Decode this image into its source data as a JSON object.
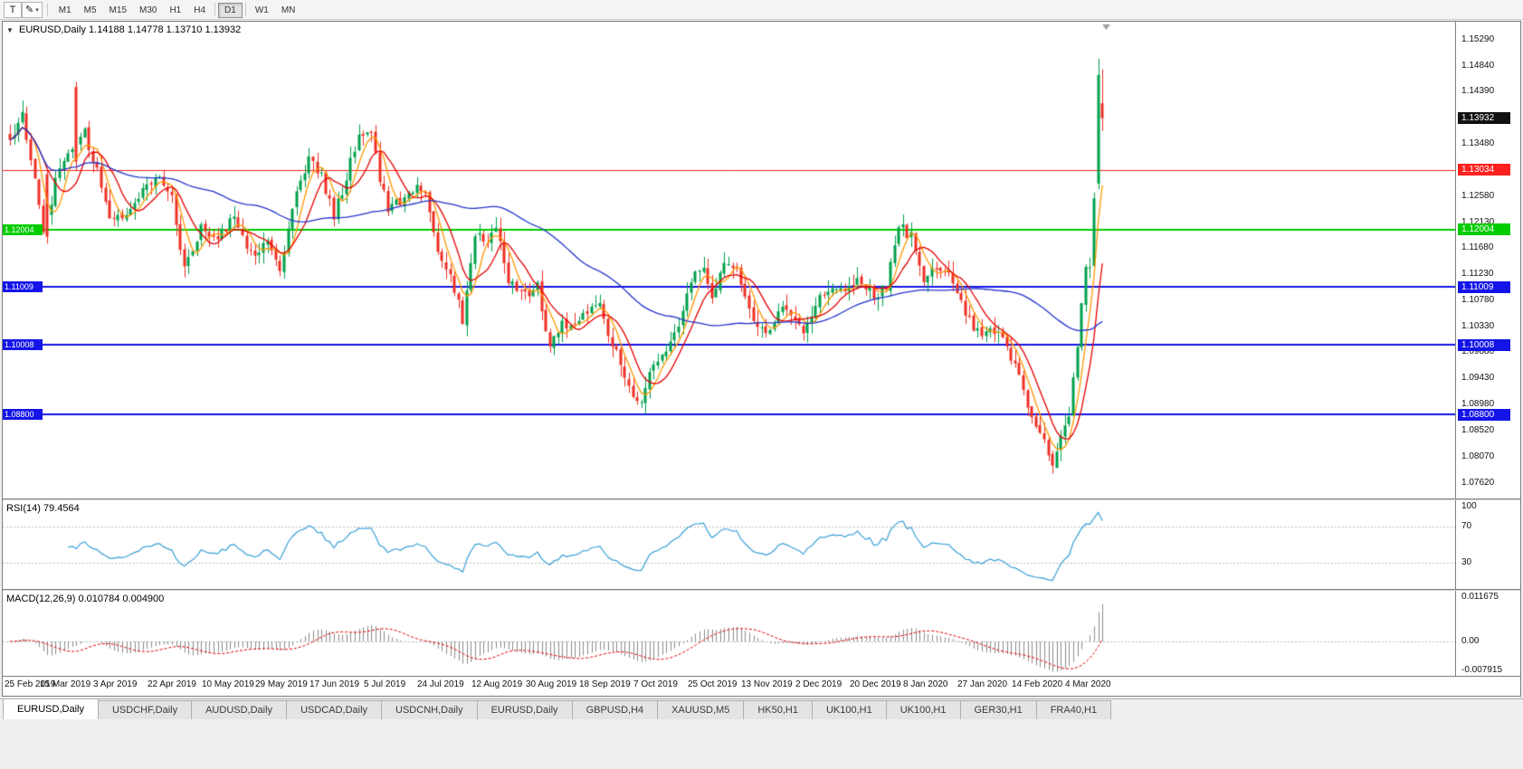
{
  "toolbar": {
    "tool_buttons": [
      {
        "id": "text-tool",
        "glyph": "T",
        "has_dropdown": false
      },
      {
        "id": "drawing-tool",
        "glyph": "✎",
        "has_dropdown": true
      }
    ],
    "timeframes": [
      "M1",
      "M5",
      "M15",
      "M30",
      "H1",
      "H4",
      "D1",
      "W1",
      "MN"
    ],
    "active_timeframe": "D1",
    "separators_after": [
      "H4",
      "D1"
    ]
  },
  "chart_data": {
    "type": "candlestick",
    "title": "EURUSD,Daily",
    "symbol": "EURUSD",
    "period": "Daily",
    "ohlc_text": "1.14188 1.14778 1.13710 1.13932",
    "open": "1.14188",
    "high": "1.14778",
    "low": "1.13710",
    "close": "1.13932",
    "bars": 264,
    "bar_start_x": 8,
    "bar_spacing": 4.59,
    "price_min": 1.0735,
    "price_max": 1.156,
    "bull_color": "#00A14B",
    "bear_color": "#EE3024",
    "y_ticks": [
      "1.15290",
      "1.14840",
      "1.14390",
      "1.13940",
      "1.13480",
      "1.13030",
      "1.12580",
      "1.12130",
      "1.11680",
      "1.11230",
      "1.10780",
      "1.10330",
      "1.09880",
      "1.09430",
      "1.08980",
      "1.08520",
      "1.08070",
      "1.07620"
    ],
    "x_labels": [
      "25 Feb 2019",
      "15 Mar 2019",
      "3 Apr 2019",
      "22 Apr 2019",
      "10 May 2019",
      "29 May 2019",
      "17 Jun 2019",
      "5 Jul 2019",
      "24 Jul 2019",
      "12 Aug 2019",
      "30 Aug 2019",
      "18 Sep 2019",
      "7 Oct 2019",
      "25 Oct 2019",
      "13 Nov 2019",
      "2 Dec 2019",
      "20 Dec 2019",
      "8 Jan 2020",
      "27 Jan 2020",
      "14 Feb 2020",
      "4 Mar 2020"
    ],
    "x_label_step": 13,
    "current_price_badge": {
      "label": "1.13932",
      "bg": "#111111"
    },
    "horizontal_lines": [
      {
        "value": 1.13034,
        "label": "1.13034",
        "color": "#FF2020",
        "width": 1,
        "left_badge": false
      },
      {
        "value": 1.12004,
        "label": "1.12004",
        "color": "#00CC00",
        "width": 2,
        "left_badge": true
      },
      {
        "value": 1.11009,
        "label": "1.11009",
        "color": "#1414E8",
        "width": 2,
        "left_badge": true
      },
      {
        "value": 1.10008,
        "label": "1.10008",
        "color": "#1414E8",
        "width": 2,
        "left_badge": true
      },
      {
        "value": 1.088,
        "label": "1.08800",
        "color": "#1414E8",
        "width": 2,
        "left_badge": true
      }
    ],
    "moving_averages": [
      {
        "period": 5,
        "color": "#FF9900"
      },
      {
        "period": 9,
        "color": "#E60000"
      },
      {
        "period": 50,
        "color": "#2233CC"
      }
    ],
    "anchors": [
      [
        0,
        1.136
      ],
      [
        3,
        1.1395
      ],
      [
        5,
        1.133
      ],
      [
        8,
        1.1195
      ],
      [
        12,
        1.131
      ],
      [
        16,
        1.1345
      ],
      [
        18,
        1.1365
      ],
      [
        21,
        1.13
      ],
      [
        24,
        1.1225
      ],
      [
        28,
        1.123
      ],
      [
        32,
        1.127
      ],
      [
        36,
        1.1295
      ],
      [
        39,
        1.1255
      ],
      [
        42,
        1.1135
      ],
      [
        46,
        1.1205
      ],
      [
        50,
        1.1185
      ],
      [
        54,
        1.1225
      ],
      [
        58,
        1.116
      ],
      [
        62,
        1.118
      ],
      [
        65,
        1.1135
      ],
      [
        68,
        1.1235
      ],
      [
        72,
        1.1325
      ],
      [
        75,
        1.129
      ],
      [
        78,
        1.1225
      ],
      [
        81,
        1.129
      ],
      [
        84,
        1.1365
      ],
      [
        87,
        1.137
      ],
      [
        89,
        1.129
      ],
      [
        91,
        1.123
      ],
      [
        94,
        1.125
      ],
      [
        97,
        1.127
      ],
      [
        100,
        1.1272
      ],
      [
        103,
        1.1155
      ],
      [
        106,
        1.1128
      ],
      [
        109,
        1.1045
      ],
      [
        112,
        1.1195
      ],
      [
        115,
        1.118
      ],
      [
        117,
        1.1205
      ],
      [
        120,
        1.1115
      ],
      [
        124,
        1.109
      ],
      [
        127,
        1.11
      ],
      [
        130,
        1.0995
      ],
      [
        133,
        1.1035
      ],
      [
        136,
        1.1045
      ],
      [
        139,
        1.1062
      ],
      [
        142,
        1.1068
      ],
      [
        144,
        1.1025
      ],
      [
        146,
        1.099
      ],
      [
        149,
        1.0925
      ],
      [
        152,
        1.0905
      ],
      [
        155,
        1.0975
      ],
      [
        158,
        1.099
      ],
      [
        161,
        1.103
      ],
      [
        164,
        1.1115
      ],
      [
        167,
        1.113
      ],
      [
        169,
        1.1085
      ],
      [
        172,
        1.115
      ],
      [
        175,
        1.113
      ],
      [
        178,
        1.1055
      ],
      [
        182,
        1.1015
      ],
      [
        185,
        1.1065
      ],
      [
        188,
        1.106
      ],
      [
        191,
        1.102
      ],
      [
        195,
        1.108
      ],
      [
        198,
        1.11
      ],
      [
        201,
        1.109
      ],
      [
        204,
        1.112
      ],
      [
        208,
        1.1085
      ],
      [
        211,
        1.11
      ],
      [
        214,
        1.1205
      ],
      [
        217,
        1.119
      ],
      [
        220,
        1.1115
      ],
      [
        223,
        1.113
      ],
      [
        226,
        1.1135
      ],
      [
        229,
        1.108
      ],
      [
        232,
        1.1025
      ],
      [
        234,
        1.102
      ],
      [
        237,
        1.103
      ],
      [
        240,
        1.1
      ],
      [
        243,
        1.0945
      ],
      [
        246,
        1.087
      ],
      [
        249,
        1.0835
      ],
      [
        251,
        1.079
      ],
      [
        253,
        1.0845
      ],
      [
        255,
        1.088
      ],
      [
        257,
        1.1
      ],
      [
        259,
        1.113
      ],
      [
        260,
        1.114
      ],
      [
        261,
        1.1245
      ],
      [
        262,
        1.133
      ],
      [
        263,
        1.1393
      ]
    ],
    "overrides": {
      "9": [
        1.1296,
        1.1304,
        1.1176,
        1.1188
      ],
      "16": [
        1.1447,
        1.1456,
        1.1302,
        1.1318
      ],
      "251": [
        1.0812,
        1.0818,
        1.0778,
        1.0792
      ],
      "262": [
        1.128,
        1.1496,
        1.127,
        1.1468
      ],
      "263": [
        1.14188,
        1.14778,
        1.1371,
        1.13932
      ]
    },
    "seed": 12,
    "close_noise": 0.002,
    "wick_noise": 0.002,
    "open_noise": 0.0006
  },
  "rsi": {
    "label_text": "RSI(14) 79.4564",
    "period": 14,
    "value": "79.4564",
    "line_color": "#3AA0D8",
    "levels": [
      70,
      30
    ],
    "range": [
      0,
      100
    ],
    "ticks": [
      {
        "v": 100,
        "label": "100"
      },
      {
        "v": 70,
        "label": "70"
      },
      {
        "v": 30,
        "label": "30"
      }
    ]
  },
  "macd": {
    "label_text": "MACD(12,26,9) 0.010784 0.004900",
    "fast": 12,
    "slow": 26,
    "signal": 9,
    "values": "0.010784 0.004900",
    "hist_color": "#8C8C8C",
    "signal_color": "#E60000",
    "range": [
      -0.007915,
      0.011675
    ],
    "ticks": [
      {
        "v": 0.011675,
        "label": "0.011675"
      },
      {
        "v": 0,
        "label": "0.00"
      },
      {
        "v": -0.007915,
        "label": "-0.007915"
      }
    ]
  },
  "tabs": {
    "items": [
      "EURUSD,Daily",
      "USDCHF,Daily",
      "AUDUSD,Daily",
      "USDCAD,Daily",
      "USDCNH,Daily",
      "EURUSD,Daily",
      "GBPUSD,H4",
      "XAUUSD,M5",
      "HK50,H1",
      "UK100,H1",
      "UK100,H1",
      "GER30,H1",
      "FRA40,H1"
    ],
    "active_index": 0
  }
}
